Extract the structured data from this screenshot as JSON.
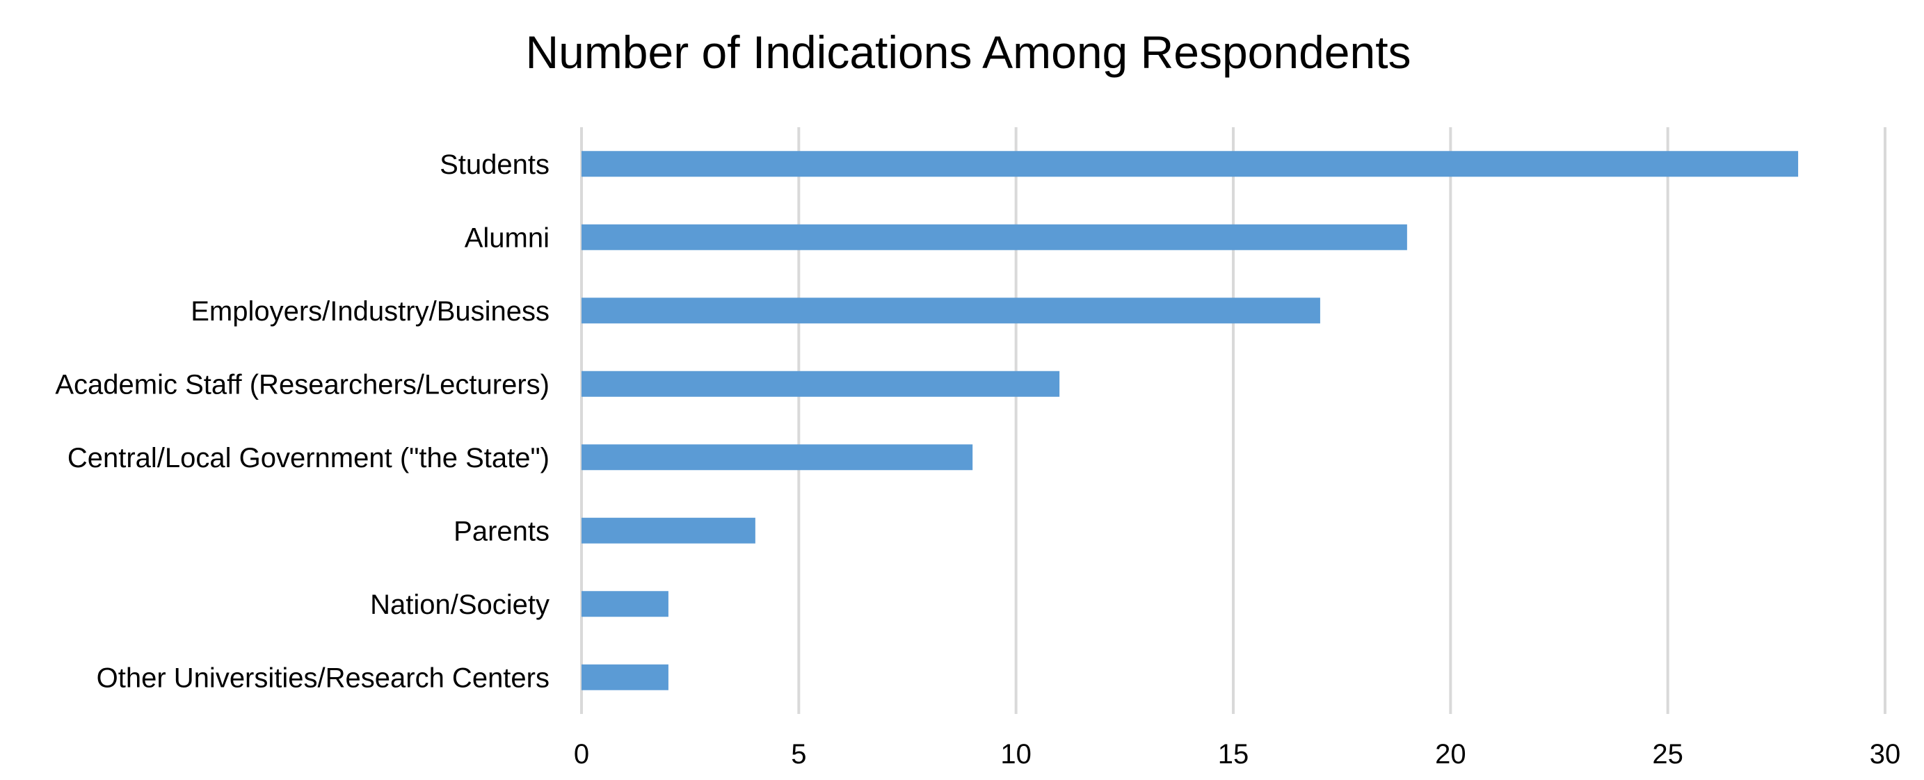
{
  "chart_data": {
    "type": "bar",
    "orientation": "horizontal",
    "title": "Number of Indications Among Respondents",
    "xlabel": "",
    "ylabel": "",
    "categories": [
      "Students",
      "Alumni",
      "Employers/Industry/Business",
      "Academic Staff (Researchers/Lecturers)",
      "Central/Local Government (\"the State\")",
      "Parents",
      "Nation/Society",
      "Other Universities/Research Centers"
    ],
    "values": [
      28,
      19,
      17,
      11,
      9,
      4,
      2,
      2
    ],
    "xlim": [
      0,
      30
    ],
    "xticks": [
      "0",
      "5",
      "10",
      "15",
      "20",
      "25",
      "30"
    ],
    "grid": "vertical",
    "legend": "none",
    "bar_color": "#5b9bd5",
    "grid_color": "#d9d9d9"
  }
}
